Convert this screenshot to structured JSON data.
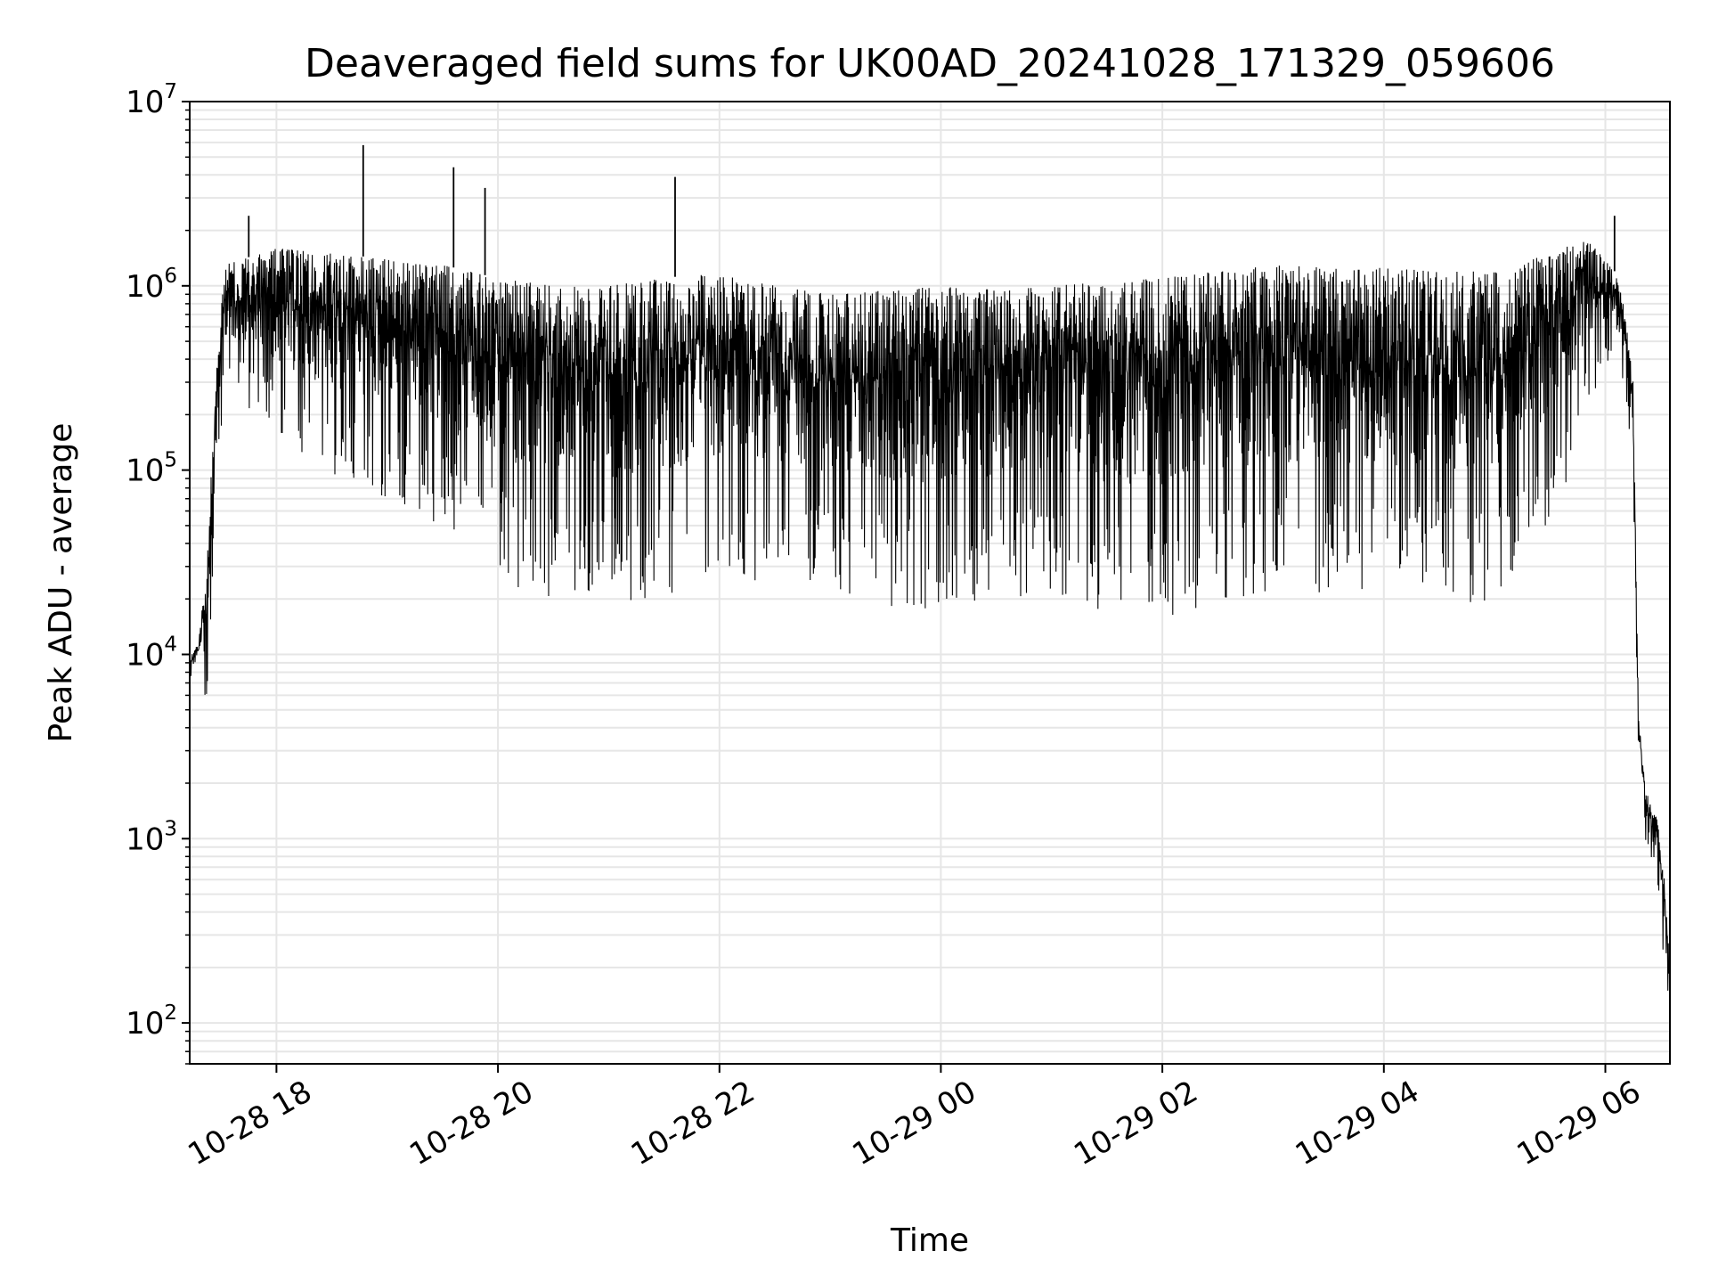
{
  "chart_data": {
    "type": "line",
    "title": "Deaveraged field sums for UK00AD_20241028_171329_059606",
    "xlabel": "Time",
    "ylabel": "Peak ADU - average",
    "yscale": "log",
    "ylim": [
      60,
      10000000
    ],
    "xlim": [
      "2024-10-28 17:13",
      "2024-10-29 06:35"
    ],
    "grid": true,
    "line_color": "#000000",
    "grid_color": "#e6e6e6",
    "x_ticks": [
      {
        "value": "2024-10-28 18:00",
        "label": "10-28 18"
      },
      {
        "value": "2024-10-28 20:00",
        "label": "10-28 20"
      },
      {
        "value": "2024-10-28 22:00",
        "label": "10-28 22"
      },
      {
        "value": "2024-10-29 00:00",
        "label": "10-29 00"
      },
      {
        "value": "2024-10-29 02:00",
        "label": "10-29 02"
      },
      {
        "value": "2024-10-29 04:00",
        "label": "10-29 04"
      },
      {
        "value": "2024-10-29 06:00",
        "label": "10-29 06"
      }
    ],
    "y_ticks": [
      {
        "value": 100,
        "base": "10",
        "exp": "2"
      },
      {
        "value": 1000,
        "base": "10",
        "exp": "3"
      },
      {
        "value": 10000,
        "base": "10",
        "exp": "4"
      },
      {
        "value": 100000,
        "base": "10",
        "exp": "5"
      },
      {
        "value": 1000000,
        "base": "10",
        "exp": "6"
      },
      {
        "value": 10000000,
        "base": "10",
        "exp": "7"
      }
    ],
    "series": [
      {
        "envelope": [
          {
            "t": "2024-10-28 17:13",
            "low": 7500,
            "high": 9500
          },
          {
            "t": "2024-10-28 17:18",
            "low": 8000,
            "high": 12000
          },
          {
            "t": "2024-10-28 17:22",
            "low": 4300,
            "high": 30000
          },
          {
            "t": "2024-10-28 17:27",
            "low": 60000,
            "high": 300000
          },
          {
            "t": "2024-10-28 17:32",
            "low": 300000,
            "high": 1300000
          },
          {
            "t": "2024-10-28 18:00",
            "low": 150000,
            "high": 1600000
          },
          {
            "t": "2024-10-28 18:30",
            "low": 80000,
            "high": 1500000
          },
          {
            "t": "2024-10-28 19:00",
            "low": 70000,
            "high": 1400000
          },
          {
            "t": "2024-10-28 19:30",
            "low": 45000,
            "high": 1300000
          },
          {
            "t": "2024-10-28 20:00",
            "low": 25000,
            "high": 1100000
          },
          {
            "t": "2024-10-28 20:30",
            "low": 20000,
            "high": 1000000
          },
          {
            "t": "2024-10-28 21:00",
            "low": 18000,
            "high": 1000000
          },
          {
            "t": "2024-10-28 21:30",
            "low": 20000,
            "high": 1100000
          },
          {
            "t": "2024-10-28 22:00",
            "low": 25000,
            "high": 1200000
          },
          {
            "t": "2024-10-28 22:30",
            "low": 25000,
            "high": 1000000
          },
          {
            "t": "2024-10-28 23:00",
            "low": 22000,
            "high": 900000
          },
          {
            "t": "2024-10-28 23:30",
            "low": 18000,
            "high": 950000
          },
          {
            "t": "2024-10-29 00:00",
            "low": 16000,
            "high": 1000000
          },
          {
            "t": "2024-10-29 00:30",
            "low": 20000,
            "high": 950000
          },
          {
            "t": "2024-10-29 01:00",
            "low": 20000,
            "high": 1000000
          },
          {
            "t": "2024-10-29 01:30",
            "low": 15000,
            "high": 1050000
          },
          {
            "t": "2024-10-29 02:00",
            "low": 15000,
            "high": 1100000
          },
          {
            "t": "2024-10-29 02:30",
            "low": 20000,
            "high": 1200000
          },
          {
            "t": "2024-10-29 03:00",
            "low": 20000,
            "high": 1300000
          },
          {
            "t": "2024-10-29 03:30",
            "low": 22000,
            "high": 1250000
          },
          {
            "t": "2024-10-29 04:00",
            "low": 20000,
            "high": 1250000
          },
          {
            "t": "2024-10-29 04:30",
            "low": 20000,
            "high": 1200000
          },
          {
            "t": "2024-10-29 05:00",
            "low": 18000,
            "high": 1200000
          },
          {
            "t": "2024-10-29 05:30",
            "low": 40000,
            "high": 1500000
          },
          {
            "t": "2024-10-29 05:50",
            "low": 200000,
            "high": 1800000
          },
          {
            "t": "2024-10-29 06:05",
            "low": 400000,
            "high": 1200000
          },
          {
            "t": "2024-10-29 06:10",
            "low": 300000,
            "high": 800000
          },
          {
            "t": "2024-10-29 06:15",
            "low": 100000,
            "high": 300000
          },
          {
            "t": "2024-10-29 06:18",
            "low": 2200,
            "high": 5000
          },
          {
            "t": "2024-10-29 06:22",
            "low": 800,
            "high": 1800
          },
          {
            "t": "2024-10-29 06:28",
            "low": 600,
            "high": 1300
          },
          {
            "t": "2024-10-29 06:32",
            "low": 200,
            "high": 600
          },
          {
            "t": "2024-10-29 06:35",
            "low": 100,
            "high": 200
          }
        ],
        "spikes": [
          {
            "t": "2024-10-28 17:45",
            "value": 2400000
          },
          {
            "t": "2024-10-28 18:47",
            "value": 5800000
          },
          {
            "t": "2024-10-28 19:36",
            "value": 4400000
          },
          {
            "t": "2024-10-28 19:53",
            "value": 3400000
          },
          {
            "t": "2024-10-28 21:36",
            "value": 3900000
          },
          {
            "t": "2024-10-29 06:05",
            "value": 2400000
          }
        ]
      }
    ]
  }
}
